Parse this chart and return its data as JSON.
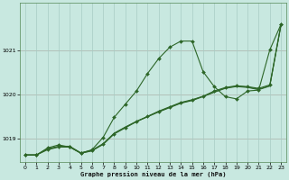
{
  "xlabel": "Graphe pression niveau de la mer (hPa)",
  "xlim": [
    -0.5,
    23.5
  ],
  "ylim": [
    1018.45,
    1022.1
  ],
  "yticks": [
    1019,
    1020,
    1021
  ],
  "xticks": [
    0,
    1,
    2,
    3,
    4,
    5,
    6,
    7,
    8,
    9,
    10,
    11,
    12,
    13,
    14,
    15,
    16,
    17,
    18,
    19,
    20,
    21,
    22,
    23
  ],
  "bg_color": "#c8e8e0",
  "grid_color": "#a8ccc4",
  "line_color": "#2d6628",
  "s1": [
    1018.62,
    1018.62,
    1018.78,
    1018.85,
    1018.8,
    1018.66,
    1018.74,
    1019.02,
    1019.48,
    1019.78,
    1020.08,
    1020.48,
    1020.82,
    1021.08,
    1021.22,
    1021.22,
    1020.52,
    1020.18,
    1019.95,
    1019.9,
    1020.08,
    1020.1,
    1021.02,
    1021.6
  ],
  "s2": [
    1018.62,
    1018.62,
    1018.74,
    1018.8,
    1018.8,
    1018.66,
    1018.72,
    1018.86,
    1019.1,
    1019.24,
    1019.38,
    1019.5,
    1019.62,
    1019.72,
    1019.82,
    1019.88,
    1019.96,
    1020.08,
    1020.16,
    1020.2,
    1020.18,
    1020.14,
    1020.22,
    1021.6
  ],
  "s3": [
    1018.62,
    1018.62,
    1018.76,
    1018.82,
    1018.82,
    1018.67,
    1018.73,
    1018.88,
    1019.12,
    1019.26,
    1019.39,
    1019.5,
    1019.61,
    1019.71,
    1019.81,
    1019.87,
    1019.96,
    1020.06,
    1020.15,
    1020.19,
    1020.17,
    1020.12,
    1020.2,
    1021.58
  ],
  "s4": [
    1018.62,
    1018.62,
    1018.75,
    1018.81,
    1018.81,
    1018.66,
    1018.71,
    1018.87,
    1019.11,
    1019.25,
    1019.38,
    1019.49,
    1019.6,
    1019.7,
    1019.8,
    1019.86,
    1019.95,
    1020.05,
    1020.14,
    1020.18,
    1020.16,
    1020.11,
    1020.19,
    1021.57
  ]
}
